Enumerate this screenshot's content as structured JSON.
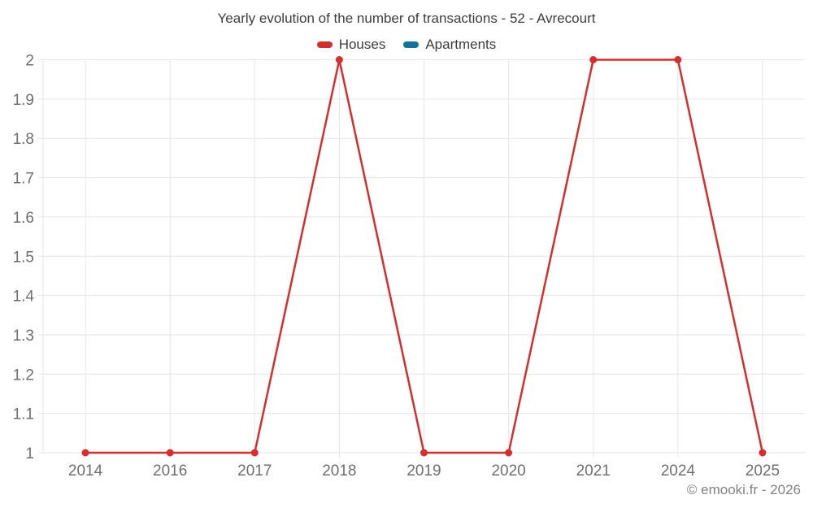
{
  "chart_data": {
    "type": "line",
    "title": "Yearly evolution of the number of transactions - 52 - Avrecourt",
    "categories": [
      "2014",
      "2016",
      "2017",
      "2018",
      "2019",
      "2020",
      "2021",
      "2024",
      "2025"
    ],
    "series": [
      {
        "name": "Houses",
        "color": "#d32f2f",
        "values": [
          1,
          1,
          1,
          2,
          1,
          1,
          2,
          2,
          1
        ]
      },
      {
        "name": "Apartments",
        "color": "#14729f",
        "values": []
      }
    ],
    "xlabel": "",
    "ylabel": "",
    "ylim": [
      1,
      2
    ],
    "ytick_values": [
      1,
      1.1,
      1.2,
      1.3,
      1.4,
      1.5,
      1.6,
      1.7,
      1.8,
      1.9,
      2
    ],
    "ytick_labels": [
      "1",
      "1.1",
      "1.2",
      "1.3",
      "1.4",
      "1.5",
      "1.6",
      "1.7",
      "1.8",
      "1.9",
      "2"
    ],
    "grid_on": true,
    "legend_position": "top",
    "tick_color": "#6f6f6f",
    "grid_color": "#e6e6e6"
  },
  "footer": {
    "copyright": "© emooki.fr - 2026"
  }
}
